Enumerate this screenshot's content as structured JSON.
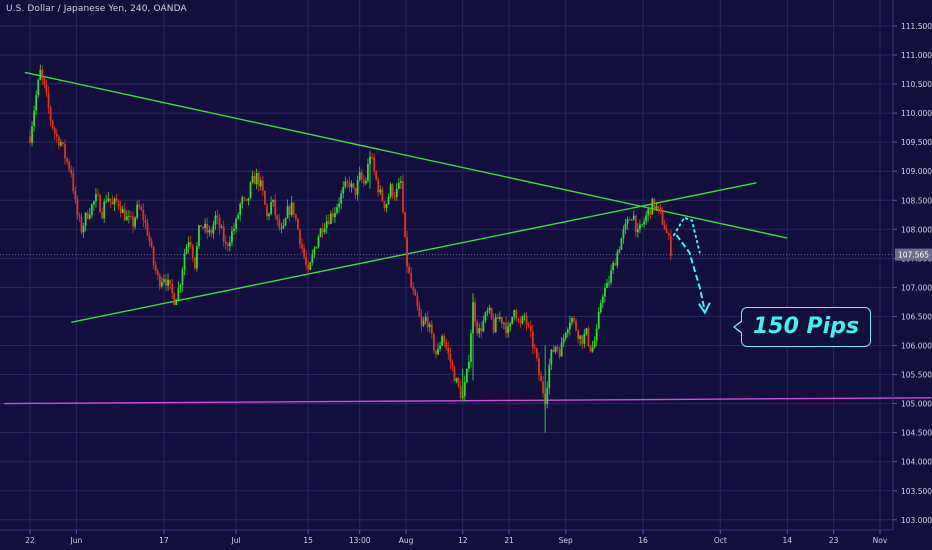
{
  "chart_data": {
    "type": "candlestick",
    "title": "U.S. Dollar / Japanese Yen, 240, OANDA",
    "symbol": "U.S. Dollar / Japanese Yen",
    "interval": "240",
    "broker": "OANDA",
    "ylim": [
      102.9,
      111.7
    ],
    "y_ticks": [
      "111.500",
      "111.000",
      "110.500",
      "110.000",
      "109.500",
      "109.000",
      "108.500",
      "108.000",
      "107.500",
      "107.000",
      "106.500",
      "106.000",
      "105.500",
      "105.000",
      "104.500",
      "104.000",
      "103.500",
      "103.000"
    ],
    "x_ticks": [
      {
        "label": "22",
        "x": 0
      },
      {
        "label": "Jun",
        "x": 9
      },
      {
        "label": "17",
        "x": 26
      },
      {
        "label": "Jul",
        "x": 40
      },
      {
        "label": "15",
        "x": 54
      },
      {
        "label": "13:00",
        "x": 64
      },
      {
        "label": "Aug",
        "x": 73
      },
      {
        "label": "12",
        "x": 84
      },
      {
        "label": "21",
        "x": 93
      },
      {
        "label": "Sep",
        "x": 104
      },
      {
        "label": "16",
        "x": 119
      },
      {
        "label": "Oct",
        "x": 134
      },
      {
        "label": "14",
        "x": 147
      },
      {
        "label": "23",
        "x": 156
      },
      {
        "label": "Nov",
        "x": 165
      }
    ],
    "current_price": "107.565",
    "price_path": [
      [
        0,
        109.6
      ],
      [
        1,
        110.2
      ],
      [
        2,
        110.7
      ],
      [
        3,
        110.35
      ],
      [
        4,
        109.9
      ],
      [
        5,
        109.6
      ],
      [
        6,
        109.5
      ],
      [
        7,
        109.2
      ],
      [
        8,
        109.0
      ],
      [
        9,
        108.3
      ],
      [
        10,
        108.0
      ],
      [
        11,
        108.25
      ],
      [
        12,
        108.4
      ],
      [
        13,
        108.55
      ],
      [
        14,
        108.3
      ],
      [
        15,
        108.6
      ],
      [
        16,
        108.4
      ],
      [
        17,
        108.5
      ],
      [
        18,
        108.3
      ],
      [
        19,
        108.15
      ],
      [
        20,
        108.1
      ],
      [
        21,
        108.4
      ],
      [
        22,
        108.2
      ],
      [
        23,
        107.9
      ],
      [
        24,
        107.4
      ],
      [
        25,
        107.1
      ],
      [
        26,
        107.2
      ],
      [
        27,
        107.0
      ],
      [
        28,
        106.8
      ],
      [
        29,
        107.0
      ],
      [
        30,
        107.6
      ],
      [
        31,
        107.9
      ],
      [
        32,
        107.4
      ],
      [
        33,
        108.1
      ],
      [
        34,
        108.0
      ],
      [
        35,
        107.9
      ],
      [
        36,
        108.2
      ],
      [
        37,
        108.0
      ],
      [
        38,
        107.7
      ],
      [
        39,
        107.9
      ],
      [
        40,
        108.1
      ],
      [
        41,
        108.5
      ],
      [
        42,
        108.4
      ],
      [
        43,
        108.8
      ],
      [
        44,
        108.9
      ],
      [
        45,
        108.7
      ],
      [
        46,
        108.2
      ],
      [
        47,
        108.5
      ],
      [
        48,
        108.1
      ],
      [
        49,
        107.9
      ],
      [
        50,
        108.3
      ],
      [
        51,
        108.4
      ],
      [
        52,
        108.0
      ],
      [
        53,
        107.6
      ],
      [
        54,
        107.2
      ],
      [
        55,
        107.6
      ],
      [
        56,
        107.9
      ],
      [
        57,
        108.1
      ],
      [
        58,
        108.2
      ],
      [
        59,
        108.3
      ],
      [
        60,
        108.5
      ],
      [
        61,
        108.7
      ],
      [
        62,
        108.8
      ],
      [
        63,
        108.6
      ],
      [
        64,
        108.9
      ],
      [
        65,
        108.75
      ],
      [
        66,
        109.3
      ],
      [
        67,
        108.9
      ],
      [
        68,
        108.6
      ],
      [
        69,
        108.4
      ],
      [
        70,
        108.7
      ],
      [
        71,
        108.6
      ],
      [
        72,
        108.8
      ],
      [
        73,
        107.5
      ],
      [
        74,
        107.0
      ],
      [
        75,
        106.7
      ],
      [
        76,
        106.3
      ],
      [
        77,
        106.5
      ],
      [
        78,
        106.1
      ],
      [
        79,
        105.8
      ],
      [
        80,
        106.2
      ],
      [
        81,
        105.9
      ],
      [
        82,
        105.6
      ],
      [
        83,
        105.3
      ],
      [
        84,
        105.1
      ],
      [
        85,
        105.6
      ],
      [
        86,
        106.7
      ],
      [
        87,
        106.2
      ],
      [
        88,
        106.4
      ],
      [
        89,
        106.6
      ],
      [
        90,
        106.3
      ],
      [
        91,
        106.5
      ],
      [
        92,
        106.4
      ],
      [
        93,
        106.2
      ],
      [
        94,
        106.7
      ],
      [
        95,
        106.3
      ],
      [
        96,
        106.5
      ],
      [
        97,
        106.2
      ],
      [
        98,
        105.9
      ],
      [
        99,
        105.4
      ],
      [
        100,
        105.1
      ],
      [
        101,
        105.8
      ],
      [
        102,
        106.0
      ],
      [
        103,
        105.9
      ],
      [
        104,
        106.3
      ],
      [
        105,
        106.5
      ],
      [
        106,
        106.3
      ],
      [
        107,
        106.1
      ],
      [
        108,
        106.2
      ],
      [
        109,
        105.9
      ],
      [
        110,
        106.2
      ],
      [
        111,
        106.9
      ],
      [
        112,
        107.0
      ],
      [
        113,
        107.3
      ],
      [
        114,
        107.6
      ],
      [
        115,
        107.9
      ],
      [
        116,
        108.1
      ],
      [
        117,
        108.3
      ],
      [
        118,
        107.9
      ],
      [
        119,
        108.1
      ],
      [
        120,
        108.3
      ],
      [
        121,
        108.45
      ],
      [
        122,
        108.3
      ],
      [
        123,
        108.1
      ],
      [
        124,
        107.8
      ],
      [
        124.5,
        107.6
      ]
    ],
    "trendlines": [
      {
        "name": "upper-resistance",
        "color": "#3ddc3d",
        "from": [
          -1,
          110.7
        ],
        "to": [
          147,
          107.85
        ]
      },
      {
        "name": "lower-support",
        "color": "#3ddc3d",
        "from": [
          8,
          106.4
        ],
        "to": [
          141,
          108.8
        ]
      },
      {
        "name": "horizontal-support",
        "color": "#d24bd9",
        "from": [
          -5,
          105.0
        ],
        "to": [
          175,
          105.1
        ]
      }
    ],
    "projection": {
      "color": "#3ff1f1",
      "dotted_path": [
        [
          125,
          107.9
        ],
        [
          127,
          108.2
        ],
        [
          128.5,
          108.15
        ],
        [
          130,
          107.6
        ]
      ],
      "arrow_path": [
        [
          125.5,
          107.9
        ],
        [
          128,
          107.6
        ],
        [
          130,
          107.0
        ],
        [
          131,
          106.6
        ]
      ]
    },
    "annotation": "150 Pips",
    "colors": {
      "background": "#120f3d",
      "bull": "#2fdc2f",
      "bear": "#e3341a",
      "grid": "#2a2760",
      "price_line": "#6a6c8a",
      "axis_text": "#d0d0e0"
    }
  }
}
